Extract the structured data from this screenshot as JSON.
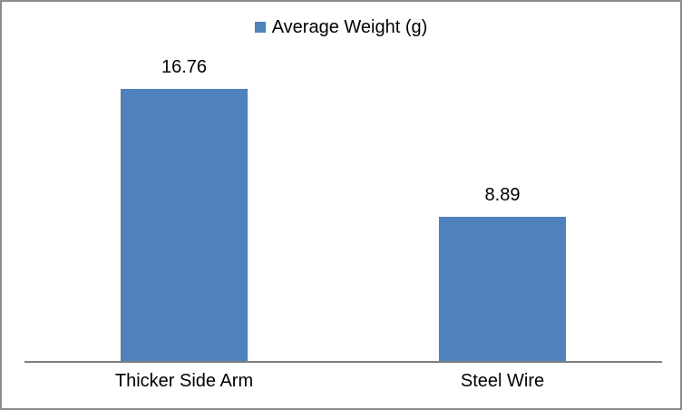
{
  "chart_data": {
    "type": "bar",
    "title": "",
    "categories": [
      "Thicker Side Arm",
      "Steel Wire"
    ],
    "values": [
      16.76,
      8.89
    ],
    "value_labels": [
      "16.76",
      "8.89"
    ],
    "series": [
      {
        "name": "Average Weight (g)",
        "values": [
          16.76,
          8.89
        ]
      }
    ],
    "legend": {
      "label": "Average Weight (g)",
      "position": "top-center",
      "marker": "square-icon"
    },
    "xlabel": "",
    "ylabel": "",
    "grid": false,
    "y_axis_visible": false,
    "colors": {
      "bar": "#4f81bd",
      "axis": "#7f7f7f",
      "frame_border": "#8c8c8c",
      "text": "#000000"
    }
  }
}
